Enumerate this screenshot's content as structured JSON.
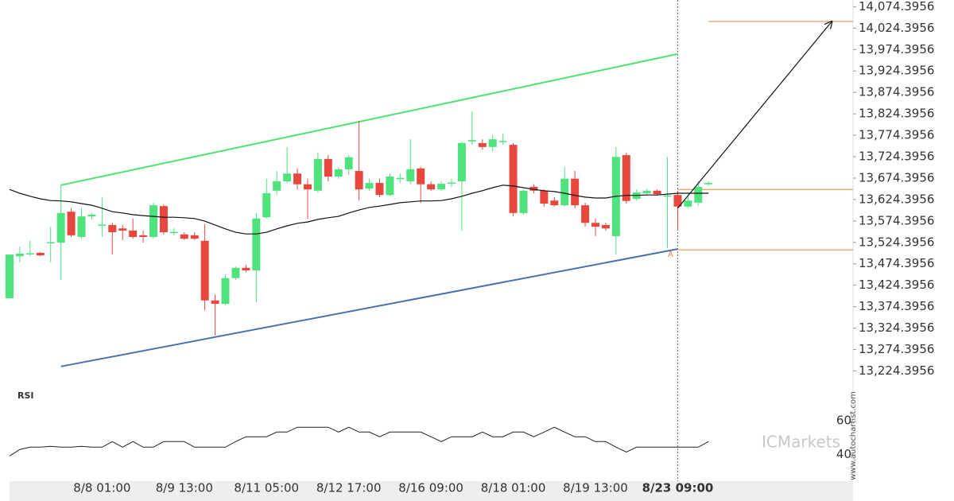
{
  "chart_data": {
    "type": "candlestick",
    "categories": [
      null,
      null,
      null,
      null,
      null,
      null,
      null,
      null,
      null,
      "8/8 01:00",
      null,
      null,
      null,
      null,
      null,
      null,
      null,
      "8/9 13:00",
      null,
      null,
      null,
      null,
      null,
      null,
      null,
      "8/11 05:00",
      null,
      null,
      null,
      null,
      null,
      null,
      null,
      "8/12 17:00",
      null,
      null,
      null,
      null,
      null,
      null,
      null,
      "8/16 09:00",
      null,
      null,
      null,
      null,
      null,
      null,
      null,
      "8/18 01:00",
      null,
      null,
      null,
      null,
      null,
      null,
      null,
      "8/19 13:00",
      null,
      null,
      null,
      null,
      null,
      null,
      null,
      "8/23 09:00",
      null,
      null,
      null
    ],
    "open": [
      13394,
      13492,
      13498,
      13500,
      13524,
      13524,
      13596,
      13537,
      13585,
      13565,
      13565,
      13557,
      13552,
      13541,
      13537,
      13609,
      13548,
      13543,
      13541,
      13528,
      13389,
      13381,
      13441,
      13465,
      13459,
      13583,
      13645,
      13667,
      13685,
      13660,
      13645,
      13719,
      13678,
      13695,
      13691,
      13650,
      13663,
      13635,
      13674,
      13667,
      13697,
      13660,
      13648,
      13663,
      13667,
      13760,
      13756,
      13747,
      13760,
      13752,
      13593,
      13654,
      13645,
      13622,
      13611,
      13673,
      13611,
      13570,
      13565,
      13539,
      13728,
      13626,
      13639,
      13645,
      13632,
      13635,
      13608,
      13617,
      13660
    ],
    "high": [
      13496,
      13515,
      13528,
      13502,
      13561,
      13658,
      13604,
      13604,
      13593,
      13630,
      13570,
      13565,
      13580,
      13552,
      13617,
      13613,
      13557,
      13548,
      13548,
      13567,
      13403,
      13450,
      13468,
      13472,
      13593,
      13673,
      13691,
      13747,
      13697,
      13673,
      13734,
      13728,
      13700,
      13728,
      13808,
      13673,
      13673,
      13685,
      13685,
      13765,
      13700,
      13667,
      13667,
      13673,
      13760,
      13830,
      13765,
      13775,
      13778,
      13756,
      13648,
      13660,
      13648,
      13630,
      13700,
      13691,
      13617,
      13580,
      13570,
      13747,
      13734,
      13648,
      13650,
      13648,
      13724,
      13645,
      13635,
      13667,
      13667
    ],
    "low": [
      13394,
      13478,
      13492,
      13492,
      13478,
      13437,
      13537,
      13533,
      13578,
      13537,
      13496,
      13530,
      13533,
      13524,
      13533,
      13543,
      13541,
      13530,
      13530,
      13366,
      13307,
      13377,
      13437,
      13455,
      13385,
      13580,
      13635,
      13663,
      13648,
      13580,
      13641,
      13667,
      13673,
      13682,
      13622,
      13645,
      13630,
      13632,
      13663,
      13660,
      13617,
      13645,
      13645,
      13654,
      13552,
      13752,
      13741,
      13737,
      13752,
      13585,
      13589,
      13639,
      13608,
      13608,
      13608,
      13604,
      13561,
      13539,
      13552,
      13496,
      13615,
      13622,
      13634,
      13634,
      13511,
      13552,
      13604,
      13611,
      13656
    ],
    "close": [
      13496,
      13498,
      13499,
      13494,
      13525,
      13593,
      13541,
      13585,
      13589,
      13566,
      13548,
      13552,
      13537,
      13537,
      13611,
      13548,
      13549,
      13533,
      13533,
      13389,
      13381,
      13441,
      13465,
      13459,
      13580,
      13639,
      13667,
      13685,
      13660,
      13648,
      13719,
      13678,
      13695,
      13723,
      13648,
      13663,
      13635,
      13678,
      13675,
      13695,
      13660,
      13648,
      13661,
      13664,
      13756,
      13763,
      13747,
      13765,
      13761,
      13593,
      13645,
      13645,
      13615,
      13611,
      13673,
      13611,
      13570,
      13561,
      13557,
      13724,
      13621,
      13641,
      13645,
      13637,
      13634,
      13608,
      13622,
      13654,
      13663
    ],
    "up_color": "#4fe37e",
    "down_color": "#e8473e",
    "ylim": [
      13190,
      14090
    ],
    "yticks": [
      {
        "value": 14074.3956,
        "label": "14,074.3956"
      },
      {
        "value": 14024.3956,
        "label": "14,024.3956"
      },
      {
        "value": 13974.3956,
        "label": "13,974.3956"
      },
      {
        "value": 13924.3956,
        "label": "13,924.3956"
      },
      {
        "value": 13874.3956,
        "label": "13,874.3956"
      },
      {
        "value": 13824.3956,
        "label": "13,824.3956"
      },
      {
        "value": 13774.3956,
        "label": "13,774.3956"
      },
      {
        "value": 13724.3956,
        "label": "13,724.3956"
      },
      {
        "value": 13674.3956,
        "label": "13,674.3956"
      },
      {
        "value": 13624.3956,
        "label": "13,624.3956"
      },
      {
        "value": 13574.3956,
        "label": "13,574.3956"
      },
      {
        "value": 13524.3956,
        "label": "13,524.3956"
      },
      {
        "value": 13474.3956,
        "label": "13,474.3956"
      },
      {
        "value": 13424.3956,
        "label": "13,424.3956"
      },
      {
        "value": 13374.3956,
        "label": "13,374.3956"
      },
      {
        "value": 13324.3956,
        "label": "13,324.3956"
      },
      {
        "value": 13274.3956,
        "label": "13,274.3956"
      },
      {
        "value": 13224.3956,
        "label": "13,224.3956"
      }
    ],
    "moving_average": {
      "color": "#111111",
      "values": [
        13648,
        13639,
        13632,
        13626,
        13622,
        13621,
        13619,
        13615,
        13611,
        13604,
        13596,
        13593,
        13589,
        13587,
        13585,
        13583,
        13583,
        13582,
        13580,
        13574,
        13565,
        13556,
        13548,
        13544,
        13544,
        13548,
        13556,
        13563,
        13569,
        13572,
        13578,
        13582,
        13585,
        13593,
        13600,
        13606,
        13609,
        13613,
        13617,
        13619,
        13621,
        13621,
        13622,
        13626,
        13632,
        13639,
        13645,
        13652,
        13658,
        13656,
        13652,
        13648,
        13645,
        13643,
        13639,
        13634,
        13630,
        13628,
        13628,
        13632,
        13634,
        13634,
        13635,
        13635,
        13637,
        13639,
        13639,
        13639,
        13639
      ]
    },
    "channels": [
      {
        "color": "#4be36f",
        "x": [
          5,
          65
        ],
        "values": [
          13658,
          13964
        ]
      },
      {
        "color": "#4a72b0",
        "x": [
          5,
          65
        ],
        "values": [
          13235,
          13509
        ]
      }
    ],
    "level_color": "#e08a3c",
    "levels": [
      {
        "value": 14040,
        "from": 68
      },
      {
        "value": 13648,
        "from": 65
      },
      {
        "value": 13507,
        "from": 65
      }
    ],
    "arrow": {
      "color": "#111111",
      "x": [
        65,
        80
      ],
      "values": [
        13604,
        14040
      ]
    },
    "current_index": 65,
    "marker_label": "A",
    "rsi": {
      "title": "RSI",
      "color": "#222222",
      "ylim": [
        24,
        81
      ],
      "yticks": [
        40,
        60
      ],
      "values": [
        39.0,
        42.9,
        44.3,
        44.3,
        44.8,
        44.3,
        44.3,
        44.8,
        44.3,
        44.3,
        47.6,
        44.3,
        47.6,
        44.3,
        44.3,
        47.6,
        47.6,
        47.6,
        44.3,
        44.3,
        44.3,
        44.3,
        47.6,
        50.5,
        50.5,
        50.5,
        53.3,
        53.3,
        56.2,
        56.2,
        56.2,
        56.2,
        53.3,
        56.2,
        53.3,
        53.3,
        50.5,
        53.3,
        53.3,
        53.3,
        53.3,
        50.5,
        47.6,
        50.5,
        50.5,
        50.5,
        53.3,
        50.5,
        50.5,
        53.3,
        53.3,
        50.5,
        53.3,
        56.2,
        53.3,
        50.5,
        50.5,
        47.6,
        47.6,
        44.3,
        41.4,
        44.3,
        44.3,
        44.3,
        44.3,
        44.3,
        44.3,
        44.3,
        47.6
      ]
    },
    "watermark": "ICMarkets",
    "source": "www.autochartist.com"
  }
}
